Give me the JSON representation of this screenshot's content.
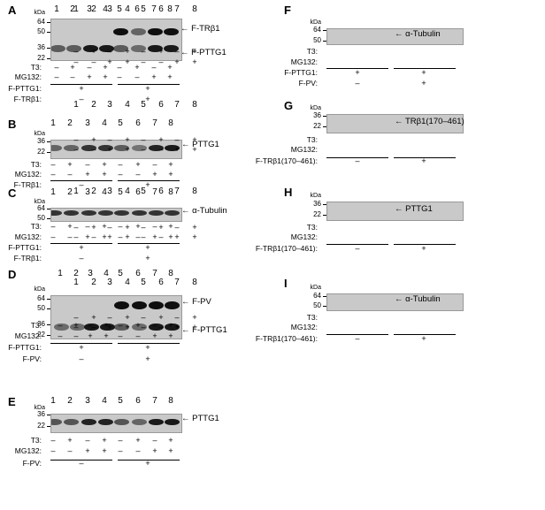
{
  "lane_numbers": [
    "1",
    "2",
    "3",
    "4",
    "5",
    "6",
    "7",
    "8"
  ],
  "kda_label": "kDa",
  "treatments": {
    "t3": "T3:",
    "mg132": "MG132:"
  },
  "signs": {
    "plus": "+",
    "minus": "–"
  },
  "panels": [
    {
      "id": "A",
      "markers": [
        "64",
        "50",
        "36",
        "22"
      ],
      "bands": [
        {
          "label": "F-TRβ1"
        },
        {
          "label": "F-PTTG1"
        }
      ],
      "t3": [
        "–",
        "+",
        "–",
        "+",
        "–",
        "+",
        "–",
        "+"
      ],
      "mg132": [
        "–",
        "–",
        "+",
        "+",
        "–",
        "–",
        "+",
        "+"
      ],
      "extra": [
        {
          "label": "F-PTTG1:",
          "g1": "+",
          "g2": "+"
        },
        {
          "label": "F-TRβ1:",
          "g1": "–",
          "g2": "+"
        }
      ]
    },
    {
      "id": "B",
      "markers": [
        "36",
        "22"
      ],
      "bands": [
        {
          "label": "PTTG1"
        }
      ],
      "t3": [
        "–",
        "+",
        "–",
        "+",
        "–",
        "+",
        "–",
        "+"
      ],
      "mg132": [
        "–",
        "–",
        "+",
        "+",
        "–",
        "–",
        "+",
        "+"
      ],
      "extra": [
        {
          "label": "F-TRβ1:",
          "g1": "–",
          "g2": "+"
        }
      ]
    },
    {
      "id": "C",
      "markers": [
        "64",
        "50"
      ],
      "bands": [
        {
          "label": "α-Tubulin"
        }
      ],
      "t3": [
        "–",
        "+",
        "–",
        "+",
        "–",
        "+",
        "–",
        "+"
      ],
      "mg132": [
        "–",
        "–",
        "+",
        "+",
        "–",
        "–",
        "+",
        "+"
      ],
      "extra": [
        {
          "label": "F-PTTG1:",
          "g1": "+",
          "g2": "+"
        },
        {
          "label": "F-TRβ1:",
          "g1": "–",
          "g2": "+"
        }
      ]
    },
    {
      "id": "D",
      "markers": [
        "64",
        "50",
        "36",
        "22"
      ],
      "bands": [
        {
          "label": "F-PV"
        },
        {
          "label": "F-PTTG1"
        }
      ],
      "t3": [
        "–",
        "+",
        "–",
        "+",
        "–",
        "+",
        "–",
        "+"
      ],
      "mg132": [
        "–",
        "–",
        "+",
        "+",
        "–",
        "–",
        "+",
        "+"
      ],
      "extra": [
        {
          "label": "F-PTTG1:",
          "g1": "+",
          "g2": "+"
        },
        {
          "label": "F-PV:",
          "g1": "–",
          "g2": "+"
        }
      ]
    },
    {
      "id": "E",
      "markers": [
        "36",
        "22"
      ],
      "bands": [
        {
          "label": "PTTG1"
        }
      ],
      "t3": [
        "–",
        "+",
        "–",
        "+",
        "–",
        "+",
        "–",
        "+"
      ],
      "mg132": [
        "–",
        "–",
        "+",
        "+",
        "–",
        "–",
        "+",
        "+"
      ],
      "extra": [
        {
          "label": "F-PV:",
          "g1": "–",
          "g2": "+"
        }
      ]
    },
    {
      "id": "F",
      "markers": [
        "64",
        "50"
      ],
      "bands": [
        {
          "label": "α-Tubulin"
        }
      ],
      "t3": [
        "–",
        "+",
        "–",
        "+",
        "–",
        "+",
        "–",
        "+"
      ],
      "mg132": [
        "–",
        "–",
        "+",
        "+",
        "–",
        "–",
        "+",
        "+"
      ],
      "extra": [
        {
          "label": "F-PTTG1:",
          "g1": "+",
          "g2": "+"
        },
        {
          "label": "F-PV:",
          "g1": "–",
          "g2": "+"
        }
      ]
    },
    {
      "id": "G",
      "markers": [
        "36",
        "22"
      ],
      "bands": [
        {
          "label": "TRβ1(170–461)"
        }
      ],
      "t3": [
        "–",
        "+",
        "–",
        "+",
        "–",
        "+",
        "–",
        "+"
      ],
      "mg132": [
        "–",
        "–",
        "+",
        "+",
        "–",
        "–",
        "+",
        "+"
      ],
      "extra": [
        {
          "label": "F-TRβ1(170–461):",
          "g1": "–",
          "g2": "+"
        }
      ]
    },
    {
      "id": "H",
      "markers": [
        "36",
        "22"
      ],
      "bands": [
        {
          "label": "PTTG1"
        }
      ],
      "t3": [
        "–",
        "+",
        "–",
        "+",
        "–",
        "+",
        "–",
        "+"
      ],
      "mg132": [
        "–",
        "–",
        "+",
        "+",
        "–",
        "–",
        "+",
        "+"
      ],
      "extra": [
        {
          "label": "F-TRβ1(170–461):",
          "g1": "–",
          "g2": "+"
        }
      ]
    },
    {
      "id": "I",
      "markers": [
        "64",
        "50"
      ],
      "bands": [
        {
          "label": "α-Tubulin"
        }
      ],
      "t3": [
        "–",
        "+",
        "–",
        "+",
        "–",
        "+",
        "–",
        "+"
      ],
      "mg132": [
        "–",
        "–",
        "+",
        "+",
        "–",
        "–",
        "+",
        "+"
      ],
      "extra": [
        {
          "label": "F-TRβ1(170–461):",
          "g1": "–",
          "g2": "+"
        }
      ]
    }
  ]
}
